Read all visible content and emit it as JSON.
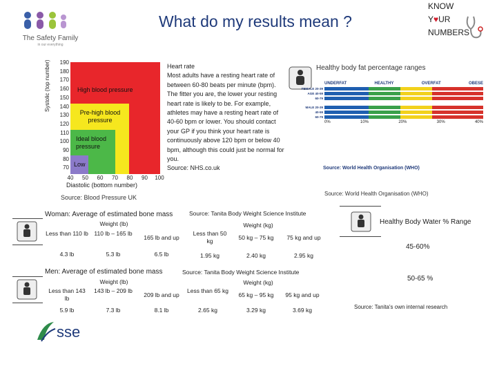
{
  "title": "What do my results mean ?",
  "logo": {
    "name": "The Safety Family",
    "tagline": "in our everything",
    "icon": "people-icon"
  },
  "know_numbers": {
    "line1": "KNOW",
    "line2_pre": "Y",
    "line2_post": "UR",
    "line3": "NUMBERS",
    "icon": "stethoscope-icon"
  },
  "bp_chart": {
    "ylabel": "Systolic (top number)",
    "xlabel": "Diastolic (bottom number)",
    "yticks": [
      "190",
      "180",
      "170",
      "160",
      "150",
      "140",
      "130",
      "120",
      "110",
      "100",
      "90",
      "80",
      "70"
    ],
    "xticks": [
      "40",
      "50",
      "60",
      "70",
      "80",
      "90",
      "100"
    ],
    "zones": {
      "high": "High blood pressure",
      "prehigh": "Pre-high blood pressure",
      "ideal": "Ideal blood pressure",
      "low": "Low"
    },
    "colors": {
      "high": "#e8262b",
      "prehigh": "#f6e71e",
      "ideal": "#4cb848",
      "low": "#8b7ac9"
    },
    "source": "Source: Blood Pressure UK"
  },
  "heart_rate": {
    "heading": "Heart rate",
    "body": "Most adults have a resting heart rate of between 60-80 beats per minute (bpm). The fitter you are, the lower your resting heart rate is likely to be. For example, athletes may have a resting heart rate of 40-60 bpm or lower. You should contact your GP if you think your heart rate is continuously above 120 bpm or below 40 bpm, although this could just be normal for you.",
    "source": "Source: NHS.co.uk"
  },
  "body_fat": {
    "title": "Healthy body fat percentage ranges",
    "headers": [
      "UNDERFAT",
      "HEALTHY",
      "OVERFAT",
      "OBESE"
    ],
    "rows": [
      "FEMALE 20-39",
      "AGE 40-59",
      "60-79",
      "MALE 20-39",
      "40-59",
      "60-79"
    ],
    "ticks": [
      "0%",
      "10%",
      "20%",
      "30%",
      "40%"
    ],
    "source_inner": "Source: World Health Organisation (WHO)",
    "source": "Source: World Health Organisation (WHO)"
  },
  "women_bone": {
    "title": "Woman: Average of estimated bone mass",
    "lb_header": "Weight (lb)",
    "lb_ranges": [
      "Less than 110 lb",
      "110 lb – 165 lb",
      "165 lb and up"
    ],
    "lb_values": [
      "4.3 lb",
      "5.3 lb",
      "6.5 lb"
    ],
    "kg_source": "Source: Tanita Body Weight Science Institute",
    "kg_header": "Weight (kg)",
    "kg_ranges": [
      "Less than 50 kg",
      "50 kg – 75 kg",
      "75 kg and up"
    ],
    "kg_values": [
      "1.95 kg",
      "2.40 kg",
      "2.95 kg"
    ]
  },
  "men_bone": {
    "title": "Men: Average of estimated bone mass",
    "lb_header": "Weight (lb)",
    "lb_ranges": [
      "Less than 143 lb",
      "143 lb – 209 lb",
      "209 lb and up"
    ],
    "lb_values": [
      "5.9 lb",
      "7.3 lb",
      "8.1 lb"
    ],
    "kg_source": "Source: Tanita Body Weight Science Institute",
    "kg_header": "Weight (kg)",
    "kg_ranges": [
      "Less than 65 kg",
      "65 kg – 95 kg",
      "95 kg and up"
    ],
    "kg_values": [
      "2.65 kg",
      "3.29 kg",
      "3.69 kg"
    ]
  },
  "water": {
    "title": "Healthy Body Water % Range",
    "female": "45-60%",
    "male": "50-65 %",
    "source": "Source: Tanita's own internal research"
  },
  "sse_logo": "sse"
}
